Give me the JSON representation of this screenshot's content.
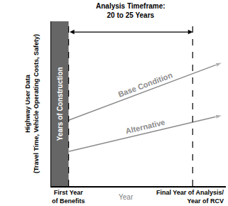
{
  "chart_data": {
    "type": "line",
    "x_label": "Year",
    "y_label": [
      "Highway User Data",
      "(Travel Time, Vehicle Operating Costs, Safety)"
    ],
    "xlim": [
      0,
      100
    ],
    "ylim": [
      0,
      100
    ],
    "tick_labels": false,
    "grid": false,
    "x": [
      10,
      98
    ],
    "series": [
      {
        "name": "Base Condition",
        "color": "#8c8c8c",
        "marker": "arrow",
        "values": [
          40,
          75
        ]
      },
      {
        "name": "Alternative",
        "color": "#8c8c8c",
        "marker": "arrow",
        "values": [
          21,
          43
        ]
      }
    ],
    "construction": {
      "label": "Years of Construction",
      "x": [
        0,
        10
      ],
      "color": "#666666"
    },
    "milestones": [
      {
        "label": [
          "First Year",
          "of Benefits"
        ],
        "x": 10
      },
      {
        "label": [
          "Final Year of Analysis/",
          "Year of RCV"
        ],
        "x": 81
      }
    ],
    "timeframe": {
      "label": [
        "Analysis Timeframe:",
        "20 to 25 Years"
      ],
      "x": [
        10,
        81
      ]
    }
  }
}
